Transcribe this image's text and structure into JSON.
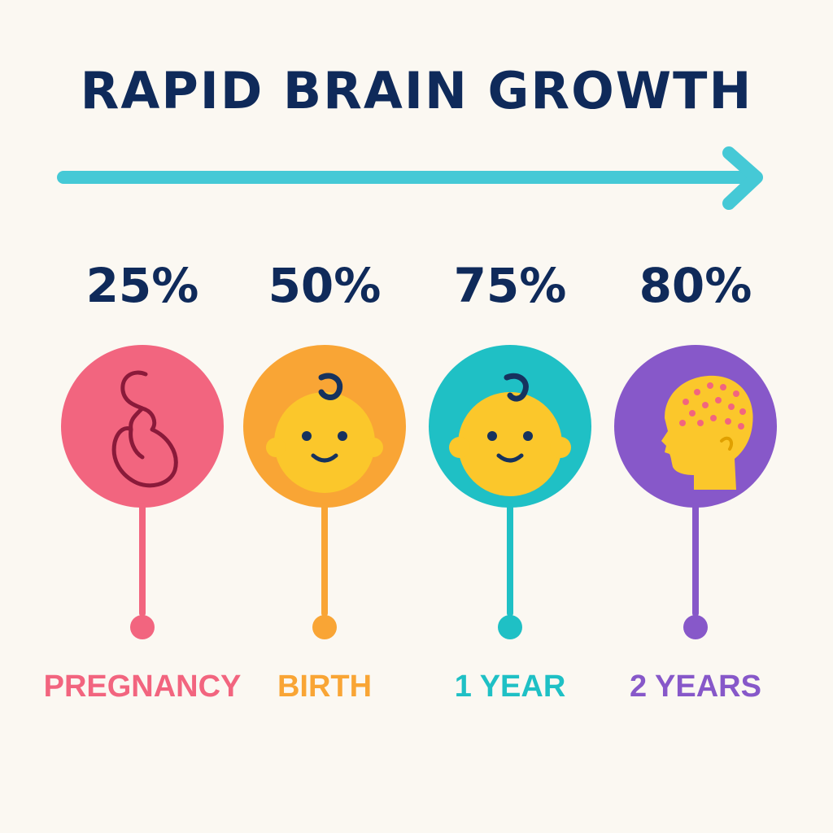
{
  "title": "RAPID BRAIN GROWTH",
  "colors": {
    "title": "#0f2a5a",
    "arrow": "#45c9d6",
    "background": "#fbf8f2",
    "face": "#fbc72b",
    "feature": "#16325e"
  },
  "stages": [
    {
      "percent": "25%",
      "label": "PREGNANCY",
      "color": "#f2657f",
      "icon": "pregnancy-icon"
    },
    {
      "percent": "50%",
      "label": "BIRTH",
      "color": "#f9a535",
      "icon": "newborn-face-icon"
    },
    {
      "percent": "75%",
      "label": "1 YEAR",
      "color": "#1fc0c5",
      "icon": "baby-face-icon"
    },
    {
      "percent": "80%",
      "label": "2 YEARS",
      "color": "#8758c9",
      "icon": "child-brain-profile-icon"
    }
  ]
}
